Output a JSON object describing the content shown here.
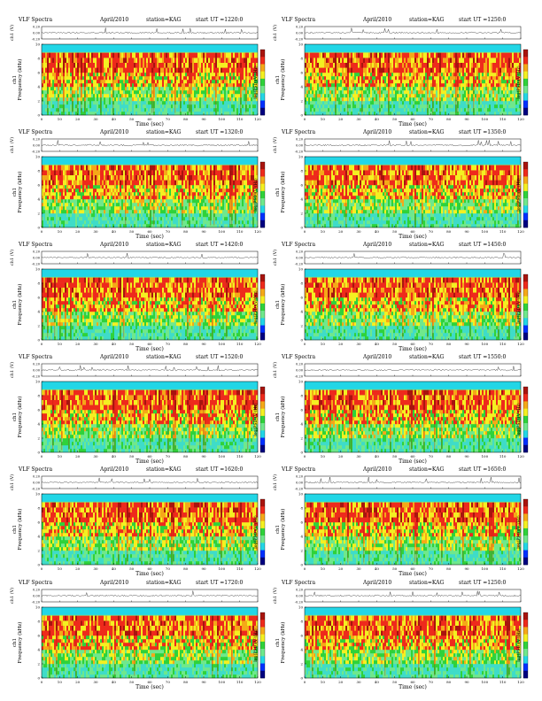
{
  "page": {
    "columns": 2,
    "rows": 6
  },
  "common": {
    "title_label": "VLF Spectra",
    "date": "April/2010",
    "station": "station=KAG",
    "ylabel_time_series": "ch1 (V)",
    "ylabel_spectrogram": "ch1\nFrequency (kHz)",
    "xlabel": "Time (sec)",
    "colorbar_label": "log(PSD)(V²/Hz)",
    "colors": {
      "cyan": "#22d6e6",
      "light_green": "#6fe88c",
      "green": "#2fd23a",
      "yellow": "#f4f021",
      "orange": "#f5a818",
      "red": "#ee2a1c",
      "dark_red": "#a8140e",
      "blue": "#0030ff",
      "navy": "#000080"
    }
  },
  "panels": [
    {
      "start": "start  UT  =1220:0"
    },
    {
      "start": "start  UT  =1250:0"
    },
    {
      "start": "start  UT  =1320:0"
    },
    {
      "start": "start  UT  =1350:0"
    },
    {
      "start": "start  UT  =1420:0"
    },
    {
      "start": "start  UT  =1450:0"
    },
    {
      "start": "start  UT  =1520:0"
    },
    {
      "start": "start  UT  =1550:0"
    },
    {
      "start": "start  UT  =1620:0"
    },
    {
      "start": "start  UT  =1650:0"
    },
    {
      "start": "start  UT  =1720:0"
    },
    {
      "start": "start  UT  =1250:0"
    }
  ],
  "chart_data": {
    "type": "heatmap",
    "description_units": "time-frequency spectrogram with voltage time series above",
    "x": {
      "label": "Time (sec)",
      "range": [
        0,
        120
      ],
      "ticks": [
        0,
        10,
        20,
        30,
        40,
        50,
        60,
        70,
        80,
        90,
        100,
        110,
        120
      ]
    },
    "y_spectrogram": {
      "label": "Frequency (kHz)",
      "range": [
        0,
        10
      ],
      "ticks": [
        0,
        2,
        4,
        6,
        8,
        10
      ]
    },
    "y_time_series": {
      "label": "ch1 (V)",
      "ticks": [
        "0.20",
        "0.00",
        "-0.20"
      ]
    },
    "colorbar": {
      "label": "log(PSD)(V²/Hz)"
    },
    "series": [
      {
        "start_ut": "1220:0"
      },
      {
        "start_ut": "1250:0"
      },
      {
        "start_ut": "1320:0"
      },
      {
        "start_ut": "1350:0"
      },
      {
        "start_ut": "1420:0"
      },
      {
        "start_ut": "1450:0"
      },
      {
        "start_ut": "1520:0"
      },
      {
        "start_ut": "1550:0"
      },
      {
        "start_ut": "1620:0"
      },
      {
        "start_ut": "1650:0"
      },
      {
        "start_ut": "1720:0"
      },
      {
        "start_ut": "1250:0"
      }
    ]
  }
}
